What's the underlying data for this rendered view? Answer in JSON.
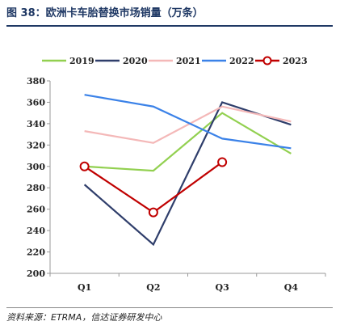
{
  "header": {
    "title": "图 38：欧洲卡车胎替换市场销量（万条）"
  },
  "footer": {
    "source": "资料来源：ETRMA，信达证券研发中心"
  },
  "chart_data": {
    "type": "line",
    "categories": [
      "Q1",
      "Q2",
      "Q3",
      "Q4"
    ],
    "ylim": [
      200,
      380
    ],
    "yticks": [
      200,
      220,
      240,
      260,
      280,
      300,
      320,
      340,
      360,
      380
    ],
    "grid": false,
    "legend": "top",
    "series": [
      {
        "name": "2019",
        "color": "#92d050",
        "marker": "none",
        "values": [
          300,
          296,
          350,
          312
        ]
      },
      {
        "name": "2020",
        "color": "#2f3e6b",
        "marker": "none",
        "values": [
          283,
          227,
          360,
          339
        ]
      },
      {
        "name": "2021",
        "color": "#f4b8b8",
        "marker": "none",
        "values": [
          333,
          322,
          356,
          342
        ]
      },
      {
        "name": "2022",
        "color": "#3b82e8",
        "marker": "none",
        "values": [
          367,
          356,
          326,
          317
        ]
      },
      {
        "name": "2023",
        "color": "#c00000",
        "marker": "circle",
        "values": [
          300,
          257,
          304,
          null
        ]
      }
    ]
  }
}
